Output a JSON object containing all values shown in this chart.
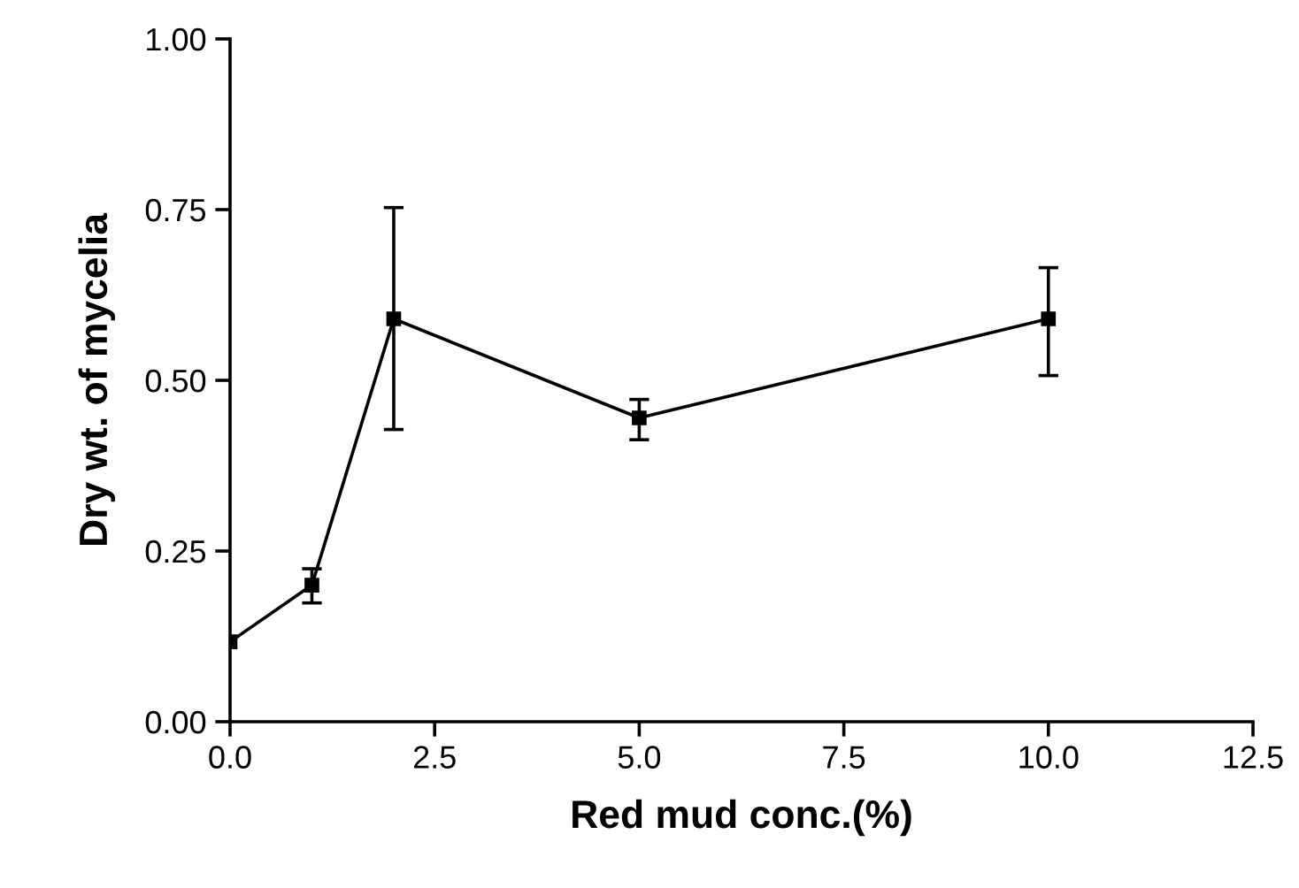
{
  "chart_data": {
    "type": "line",
    "xlabel": "Red mud conc.(%)",
    "ylabel": "Dry wt. of mycelia",
    "x": [
      0,
      1,
      2,
      5,
      10
    ],
    "series": [
      {
        "color": "#000000",
        "values": [
          0.117,
          0.2,
          0.59,
          0.445,
          0.59
        ],
        "errors": [
          null,
          [
            0.174,
            0.224
          ],
          [
            0.428,
            0.753
          ],
          [
            0.413,
            0.472
          ],
          [
            0.507,
            0.665
          ]
        ]
      }
    ],
    "xlim": [
      0,
      12.5
    ],
    "xticks": [
      {
        "value": 0,
        "label": "0.0"
      },
      2.5,
      {
        "value": 5,
        "label": "5.0"
      },
      7.5,
      {
        "value": 10,
        "label": "10.0"
      },
      12.5
    ],
    "ylim": [
      0,
      1
    ],
    "yticks": [
      {
        "value": 0,
        "label": "0.00"
      },
      0.25,
      {
        "value": 0.5,
        "label": "0.50"
      },
      0.75,
      {
        "value": 1,
        "label": "1.00"
      }
    ],
    "marker": "square",
    "line_style": "solid",
    "grid": false,
    "legend": false
  }
}
